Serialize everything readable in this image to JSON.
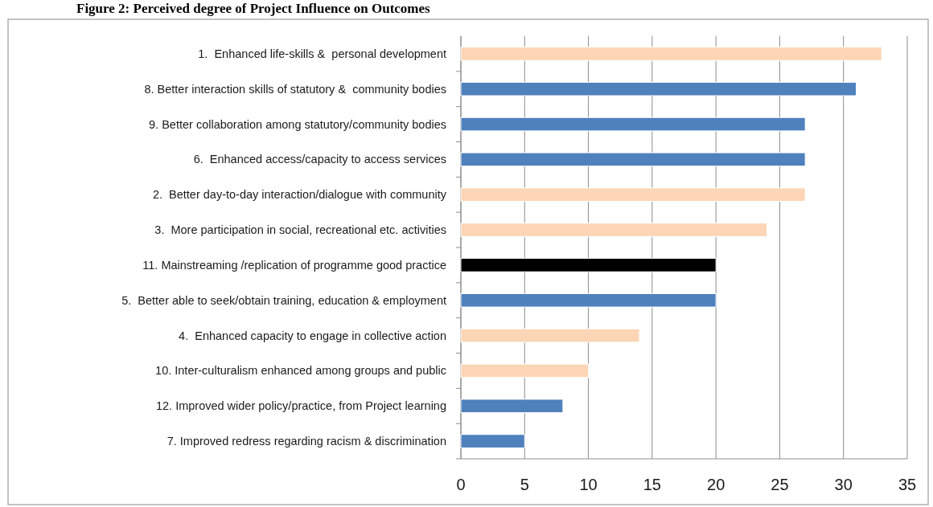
{
  "chart_data": {
    "type": "bar",
    "orientation": "horizontal",
    "title": "Figure 2: Perceived degree of Project Influence on Outcomes",
    "categories": [
      "1.  Enhanced life-skills &  personal development",
      "8. Better interaction skills of statutory &  community bodies",
      "9. Better collaboration among statutory/community bodies",
      "6.  Enhanced access/capacity to access services",
      "2.  Better day-to-day interaction/dialogue with community",
      "3.  More participation in social, recreational etc. activities",
      "11. Mainstreaming /replication of programme good practice",
      "5.  Better able to seek/obtain training, education & employment",
      "4.  Enhanced capacity to engage in collective action",
      "10. Inter-culturalism enhanced among groups and public",
      "12. Improved wider policy/practice, from Project learning",
      "7. Improved redress regarding racism & discrimination"
    ],
    "values": [
      33,
      31,
      27,
      27,
      27,
      24,
      20,
      20,
      14,
      10,
      8,
      5
    ],
    "colors": [
      "#fbd5b5",
      "#4f81bd",
      "#4f81bd",
      "#4f81bd",
      "#fbd5b5",
      "#fbd5b5",
      "#000000",
      "#4f81bd",
      "#fbd5b5",
      "#fbd5b5",
      "#4f81bd",
      "#4f81bd"
    ],
    "xlim": [
      0,
      35
    ],
    "xticks": [
      0,
      5,
      10,
      15,
      20,
      25,
      30,
      35
    ],
    "grid": "x"
  }
}
